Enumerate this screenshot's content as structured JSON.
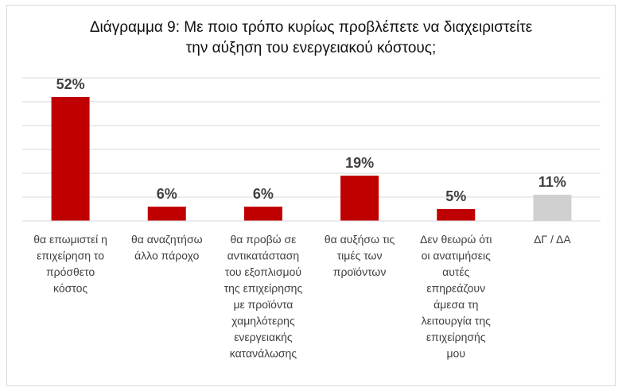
{
  "chart_data": {
    "type": "bar",
    "title_lines": [
      "Διάγραμμα 9: Με ποιο τρόπο κυρίως προβλέπετε να  διαχειριστείτε",
      "την αύξηση του ενεργειακού κόστους;"
    ],
    "categories": [
      [
        "θα επωμιστεί η",
        "επιχείρηση το",
        "πρόσθετο",
        "κόστος"
      ],
      [
        "θα αναζητήσω",
        "άλλο πάροχο"
      ],
      [
        "θα προβώ σε",
        "αντικατάσταση",
        "του εξοπλισμού",
        "της επιχείρησης",
        "με προϊόντα",
        "χαμηλότερης",
        "ενεργειακής",
        "κατανάλωσης"
      ],
      [
        "θα αυξήσω τις",
        "τιμές των",
        "προϊόντων"
      ],
      [
        "Δεν θεωρώ ότι",
        "οι ανατιμήσεις",
        "αυτές",
        "επηρεάζουν",
        "άμεσα τη",
        "λειτουργία της",
        "επιχείρησής",
        "μου"
      ],
      [
        "ΔΓ / ΔΑ"
      ]
    ],
    "values": [
      52,
      6,
      6,
      19,
      5,
      11
    ],
    "value_labels": [
      "52%",
      "6%",
      "6%",
      "19%",
      "5%",
      "11%"
    ],
    "bar_colors": [
      "#c00000",
      "#c00000",
      "#c00000",
      "#c00000",
      "#c00000",
      "#d0d0d0"
    ],
    "unit": "%",
    "ylim": [
      0,
      60
    ],
    "grid": true,
    "legend": "none",
    "xlabel": "",
    "ylabel": ""
  }
}
